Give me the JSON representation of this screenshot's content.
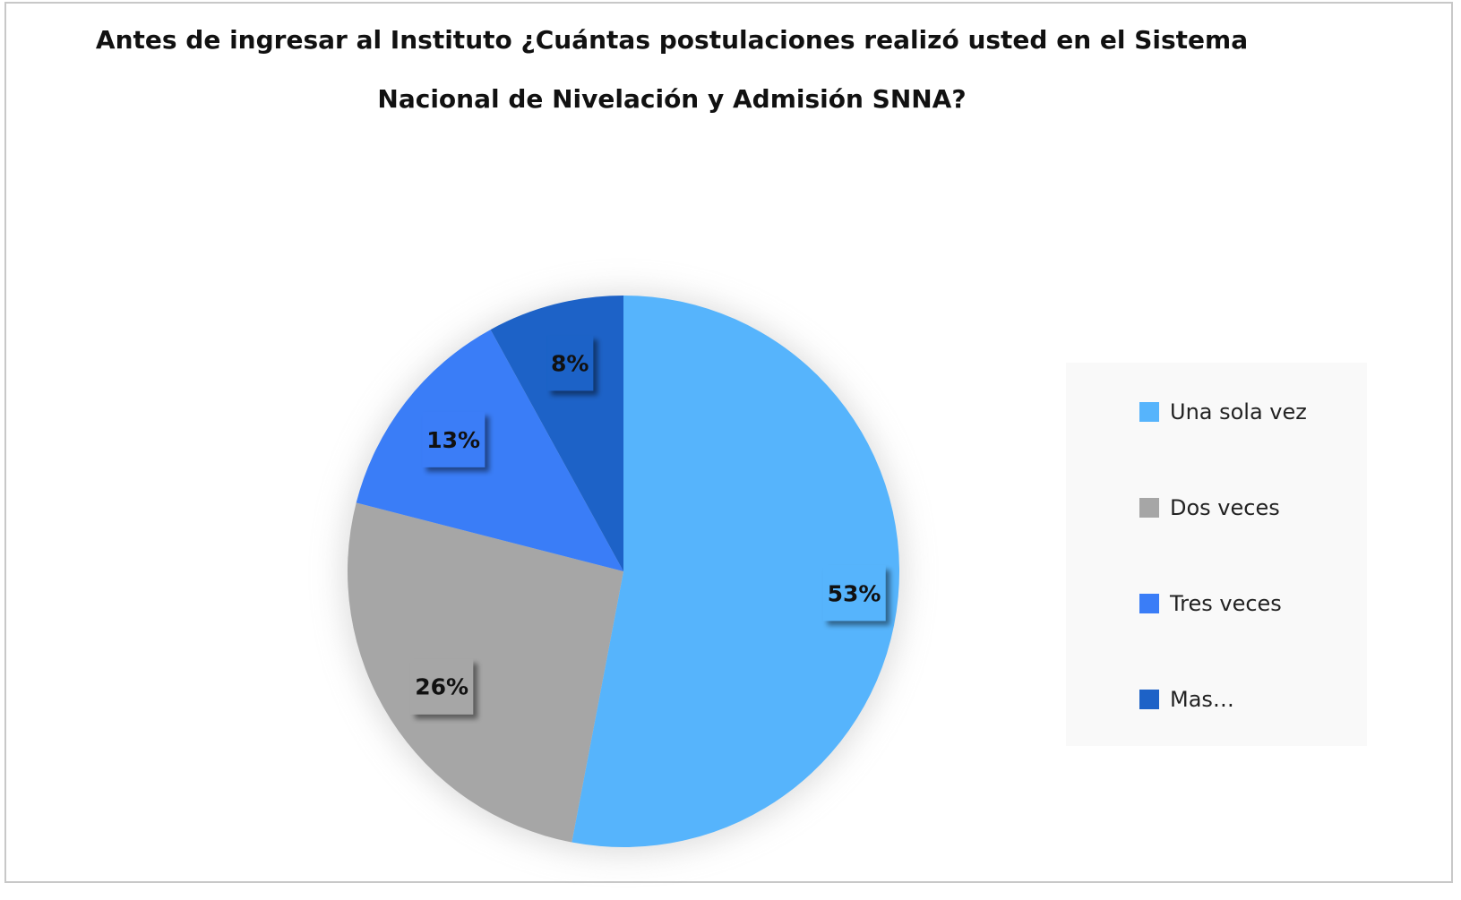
{
  "chart_data": {
    "type": "pie",
    "title_line1": "Antes de ingresar al Instituto ¿Cuántas postulaciones realizó usted en el Sistema",
    "title_line2": "Nacional de Nivelación y Admisión SNNA?",
    "categories": [
      "Una sola vez",
      "Dos veces",
      "Tres veces",
      "Mas…"
    ],
    "values": [
      53,
      26,
      13,
      8
    ],
    "data_labels": [
      "53%",
      "26%",
      "13%",
      "8%"
    ],
    "colors": [
      "#56b4fc",
      "#a6a6a6",
      "#3a7df7",
      "#1d62c7"
    ],
    "legend_position": "right"
  }
}
